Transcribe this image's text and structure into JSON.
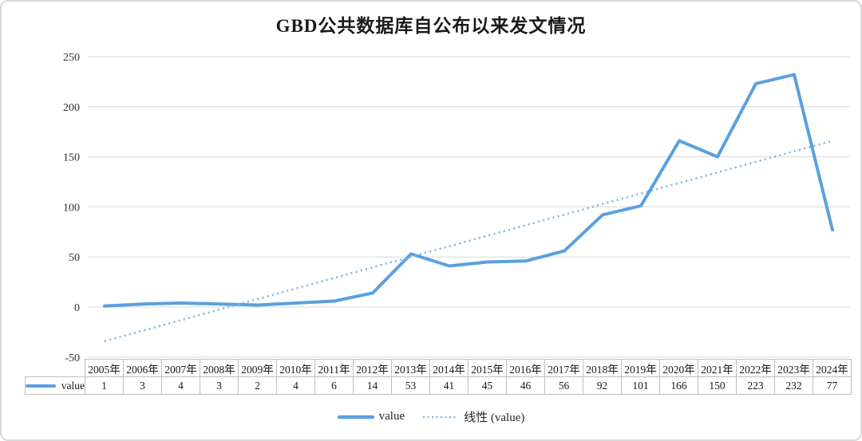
{
  "chart_data": {
    "type": "line",
    "title": "GBD公共数据库自公布以来发文情况",
    "categories": [
      "2005年",
      "2006年",
      "2007年",
      "2008年",
      "2009年",
      "2010年",
      "2011年",
      "2012年",
      "2013年",
      "2014年",
      "2015年",
      "2016年",
      "2017年",
      "2018年",
      "2019年",
      "2020年",
      "2021年",
      "2022年",
      "2023年",
      "2024年"
    ],
    "series": [
      {
        "name": "value",
        "values": [
          1,
          3,
          4,
          3,
          2,
          4,
          6,
          14,
          53,
          41,
          45,
          46,
          56,
          92,
          101,
          166,
          150,
          223,
          232,
          77
        ],
        "color": "#5AA0DF",
        "style": "solid"
      }
    ],
    "trendline": {
      "name": "线性 (value)",
      "basis": "value",
      "color": "#7FB3E3",
      "style": "dotted"
    },
    "y_axis": {
      "ticks": [
        250,
        200,
        150,
        100,
        50,
        0,
        -50
      ],
      "min": -50,
      "max": 250
    },
    "x_axis": {
      "labels_shown_as": "data-table"
    },
    "grid": true,
    "grid_color": "#d9d9d9",
    "table_border_color": "#bfbfbf",
    "legend_position": "bottom",
    "legend": [
      {
        "label": "value",
        "swatch": "solid"
      },
      {
        "label": "线性 (value)",
        "swatch": "dotted"
      }
    ],
    "data_table": {
      "row_header": "value"
    }
  }
}
